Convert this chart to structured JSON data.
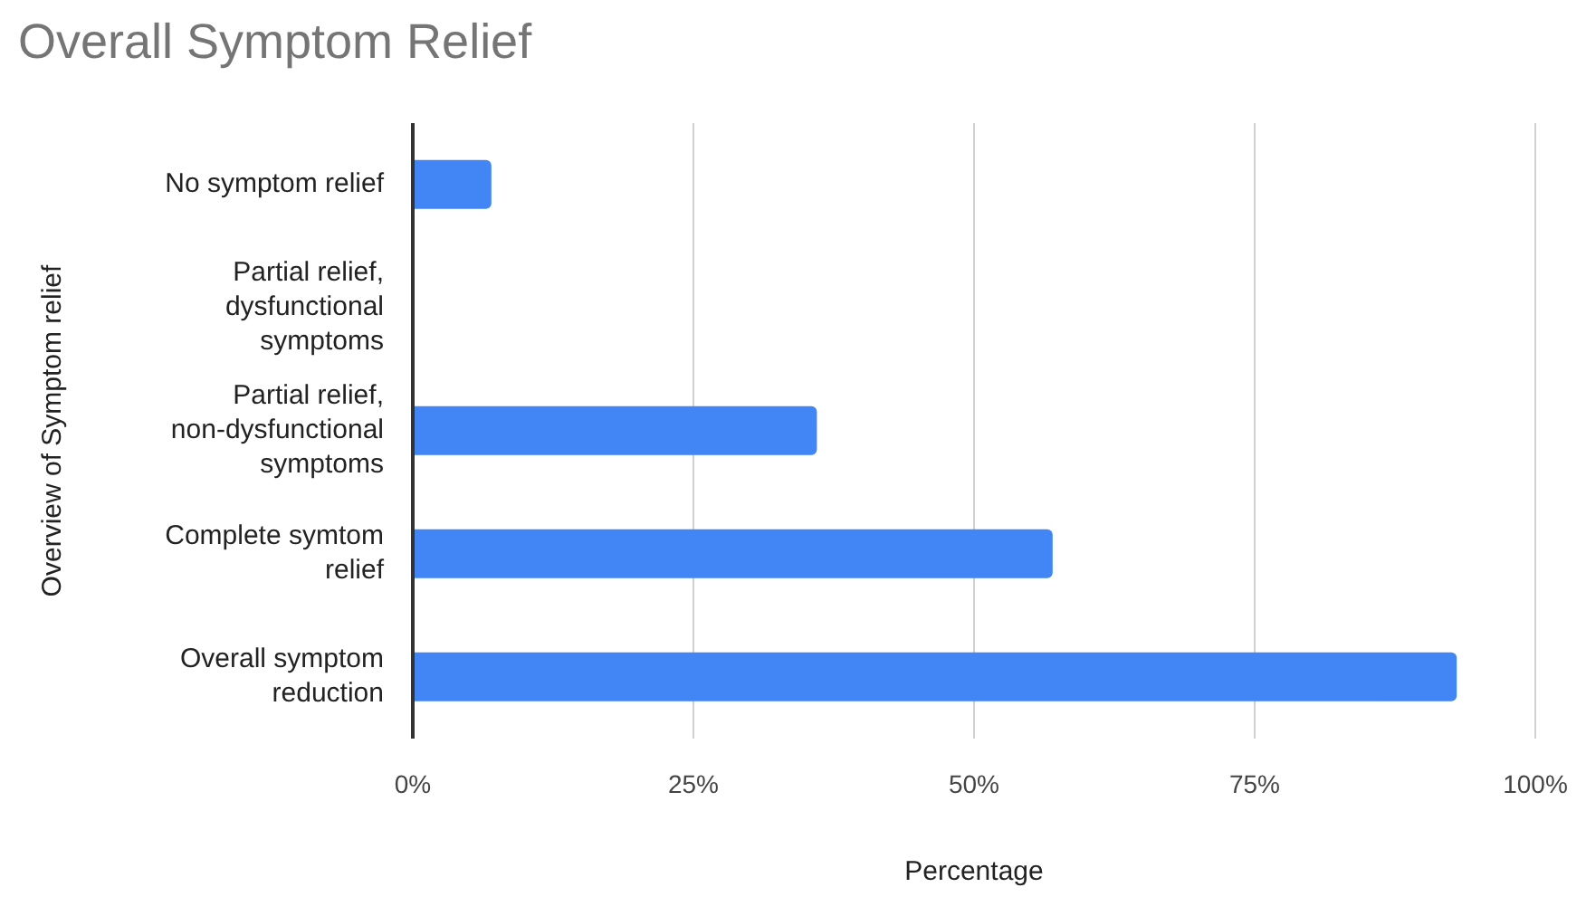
{
  "chart_data": {
    "type": "bar",
    "orientation": "horizontal",
    "title": "Overall Symptom Relief",
    "xlabel": "Percentage",
    "ylabel": "Overview of Symptom relief",
    "categories": [
      "No symptom relief",
      "Partial relief, dysfunctional symptoms",
      "Partial relief, non-dysfunctional symptoms",
      "Complete symtom relief",
      "Overall symptom reduction"
    ],
    "values": [
      0.07,
      0,
      0.36,
      0.57,
      0.93
    ],
    "color": "#4285f4",
    "xlim": [
      0,
      1
    ],
    "xticks": [
      {
        "value": 0,
        "label": "0%"
      },
      {
        "value": 0.25,
        "label": "25%"
      },
      {
        "value": 0.5,
        "label": "50%"
      },
      {
        "value": 0.75,
        "label": "75%"
      },
      {
        "value": 1,
        "label": "100%"
      }
    ],
    "grid": "x",
    "legend": false
  }
}
